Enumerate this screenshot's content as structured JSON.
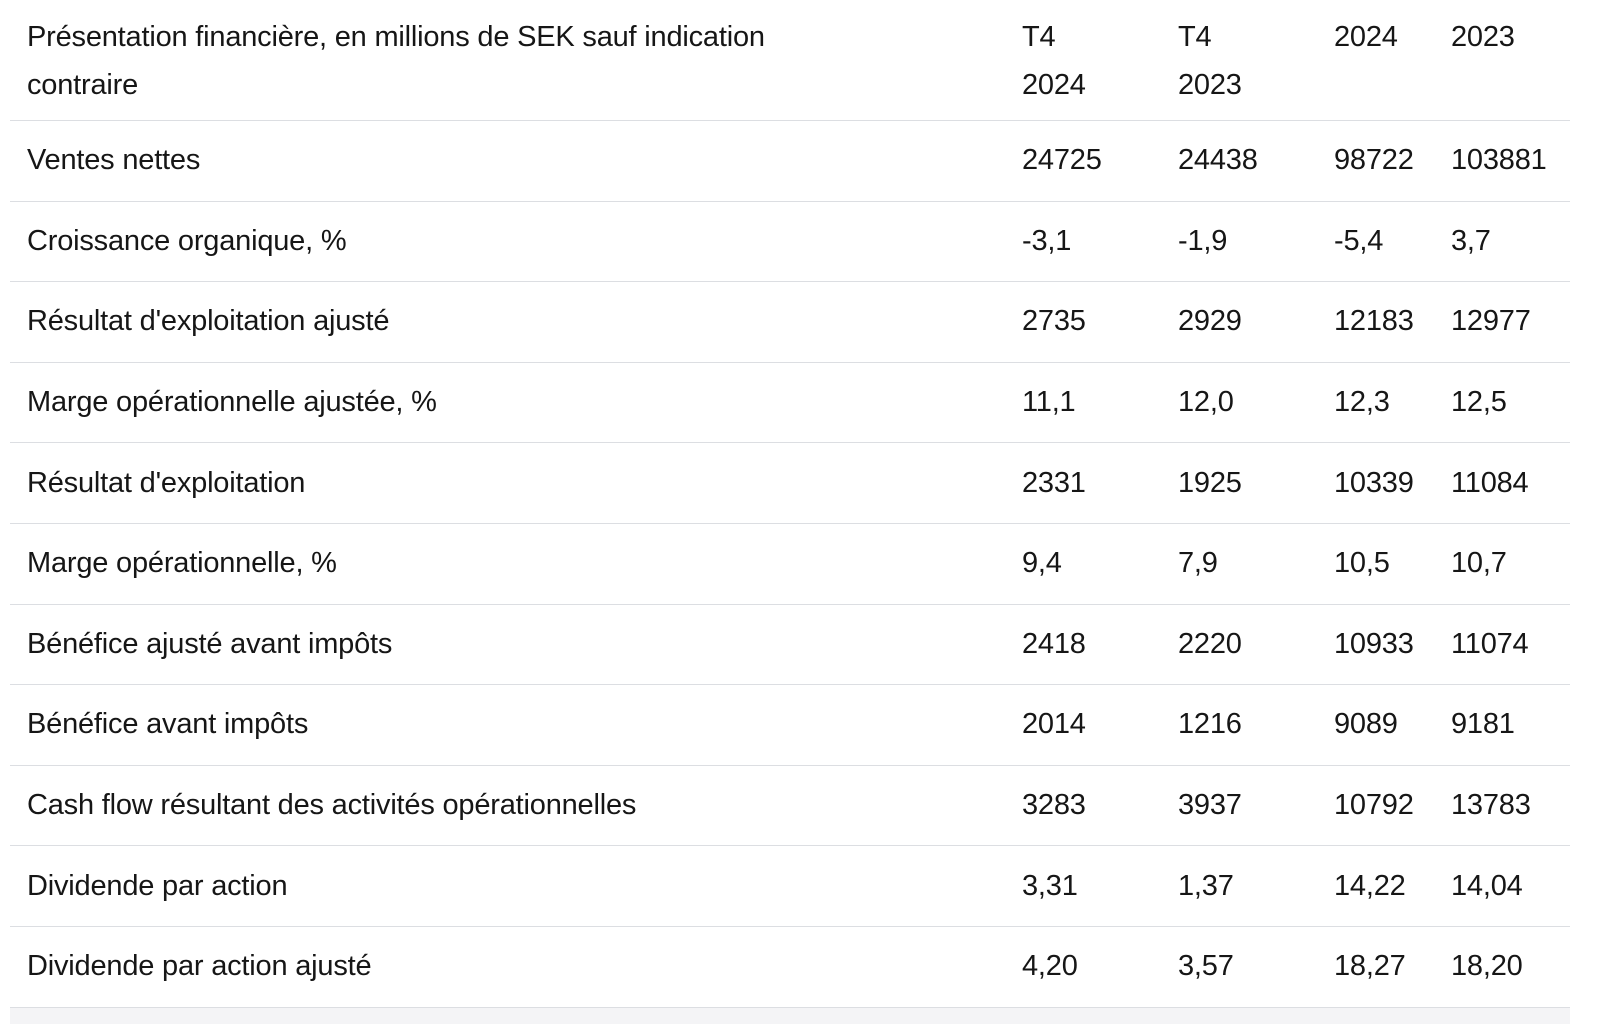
{
  "colors": {
    "background": "#ffffff",
    "text": "#161616",
    "divider": "#dcdee2",
    "bottom_strip": "#f4f4f6"
  },
  "table": {
    "header": {
      "label_line1": "Présentation financière, en millions de SEK sauf indication",
      "label_line2": "contraire",
      "columns": [
        {
          "line1": "T4",
          "line2": "2024"
        },
        {
          "line1": "T4",
          "line2": "2023"
        },
        {
          "line1": "2024",
          "line2": ""
        },
        {
          "line1": "2023",
          "line2": ""
        }
      ]
    },
    "rows": [
      {
        "label": "Ventes nettes",
        "values": [
          "24725",
          "24438",
          "98722",
          "103881"
        ]
      },
      {
        "label": "Croissance organique, %",
        "values": [
          "-3,1",
          "-1,9",
          "-5,4",
          "3,7"
        ]
      },
      {
        "label": "Résultat d'exploitation ajusté",
        "values": [
          "2735",
          "2929",
          "12183",
          "12977"
        ]
      },
      {
        "label": "Marge opérationnelle ajustée, %",
        "values": [
          "11,1",
          "12,0",
          "12,3",
          "12,5"
        ]
      },
      {
        "label": "Résultat d'exploitation",
        "values": [
          "2331",
          "1925",
          "10339",
          "11084"
        ]
      },
      {
        "label": "Marge opérationnelle, %",
        "values": [
          "9,4",
          "7,9",
          "10,5",
          "10,7"
        ]
      },
      {
        "label": "Bénéfice ajusté avant impôts",
        "values": [
          "2418",
          "2220",
          "10933",
          "11074"
        ]
      },
      {
        "label": "Bénéfice avant impôts",
        "values": [
          "2014",
          "1216",
          "9089",
          "9181"
        ]
      },
      {
        "label": "Cash flow résultant des activités opérationnelles",
        "values": [
          "3283",
          "3937",
          "10792",
          "13783"
        ]
      },
      {
        "label": "Dividende par action",
        "values": [
          "3,31",
          "1,37",
          "14,22",
          "14,04"
        ]
      },
      {
        "label": "Dividende par action ajusté",
        "values": [
          "4,20",
          "3,57",
          "18,27",
          "18,20"
        ]
      }
    ]
  }
}
